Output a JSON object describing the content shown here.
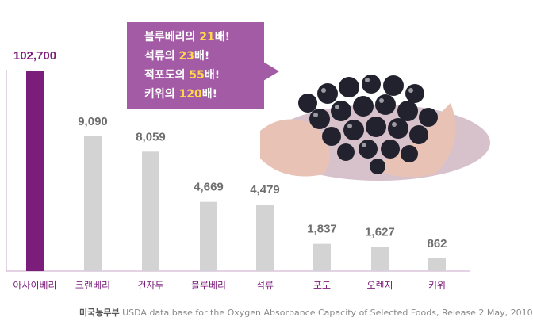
{
  "callout": {
    "lines": [
      {
        "prefix": "블루베리의 ",
        "num": "21",
        "suffix": "배!"
      },
      {
        "prefix": "석류의 ",
        "num": "23",
        "suffix": "배!"
      },
      {
        "prefix": "적포도의 ",
        "num": "55",
        "suffix": "배!"
      },
      {
        "prefix": "키위의 ",
        "num": "120",
        "suffix": "배!"
      }
    ]
  },
  "source": {
    "label": "미국농무부",
    "text": "USDA data base for the Oxygen Absorbance Capacity of Selected Foods, Release 2 May, 2010"
  },
  "colors": {
    "highlight_bar": "#7b1d7b",
    "bar": "#d3d3d3",
    "label": "#7b1d7b",
    "axis": "#c9a7c9",
    "callout": "#a35ba5"
  },
  "chart_data": {
    "type": "bar",
    "categories": [
      "아사이베리",
      "크랜베리",
      "건자두",
      "블루베리",
      "석류",
      "포도",
      "오렌지",
      "키위"
    ],
    "values": [
      102700,
      9090,
      8059,
      4669,
      4479,
      1837,
      1627,
      862
    ],
    "value_labels": [
      "102,700",
      "9,090",
      "8,059",
      "4,669",
      "4,479",
      "1,837",
      "1,627",
      "862"
    ],
    "highlight_index": 0,
    "scale": "broken-axis (first bar truncated)"
  }
}
